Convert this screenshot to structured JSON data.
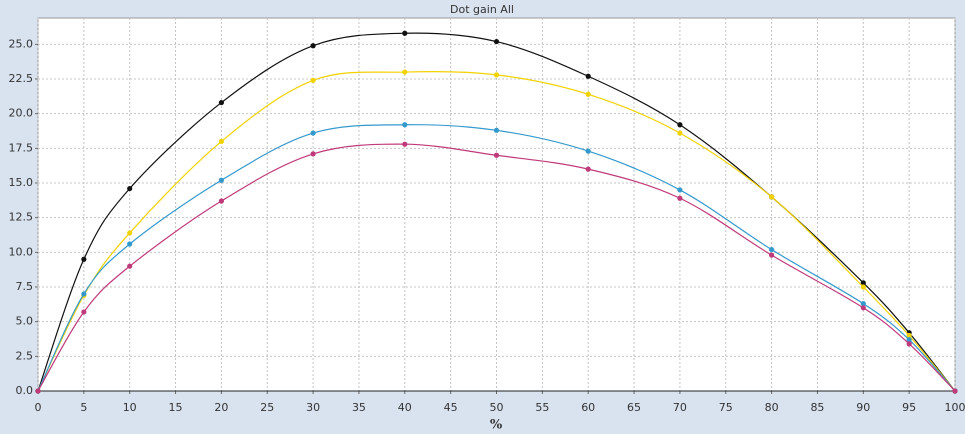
{
  "chart_data": {
    "type": "line",
    "title": "Dot gain All",
    "x_label": "%",
    "x": [
      0,
      5,
      10,
      20,
      30,
      40,
      50,
      60,
      70,
      80,
      90,
      95,
      100
    ],
    "series": [
      {
        "color": "#111111",
        "values": [
          0,
          9.5,
          14.6,
          20.8,
          24.9,
          25.8,
          25.2,
          22.7,
          19.2,
          14.0,
          7.8,
          4.2,
          0
        ]
      },
      {
        "color": "#f2d200",
        "values": [
          0,
          6.9,
          11.4,
          18.0,
          22.4,
          23.0,
          22.8,
          21.4,
          18.6,
          14.0,
          7.5,
          4.0,
          0
        ]
      },
      {
        "color": "#3399cc",
        "values": [
          0,
          7.0,
          10.6,
          15.2,
          18.6,
          19.2,
          18.8,
          17.3,
          14.5,
          10.2,
          6.3,
          3.7,
          0
        ]
      },
      {
        "color": "#c0397a",
        "values": [
          0,
          5.7,
          9.0,
          13.7,
          17.1,
          17.8,
          17.0,
          16.0,
          13.9,
          9.8,
          6.0,
          3.4,
          0
        ]
      }
    ],
    "xlim": [
      0,
      100
    ],
    "xticks": [
      0,
      5,
      10,
      15,
      20,
      25,
      30,
      35,
      40,
      45,
      50,
      55,
      60,
      65,
      70,
      75,
      80,
      85,
      90,
      95,
      100
    ],
    "ylim": [
      0,
      26.9
    ],
    "yticks": [
      {
        "value": 0,
        "label": "0.0"
      },
      {
        "value": 2.5,
        "label": "2.5"
      },
      {
        "value": 5,
        "label": "5.0"
      },
      {
        "value": 7.5,
        "label": "7.5"
      },
      {
        "value": 10,
        "label": "10.0"
      },
      {
        "value": 12.5,
        "label": "12.5"
      },
      {
        "value": 15,
        "label": "15.0"
      },
      {
        "value": 17.5,
        "label": "17.5"
      },
      {
        "value": 20,
        "label": "20.0"
      },
      {
        "value": 22.5,
        "label": "22.5"
      },
      {
        "value": 25,
        "label": "25.0"
      }
    ],
    "grid": true
  }
}
